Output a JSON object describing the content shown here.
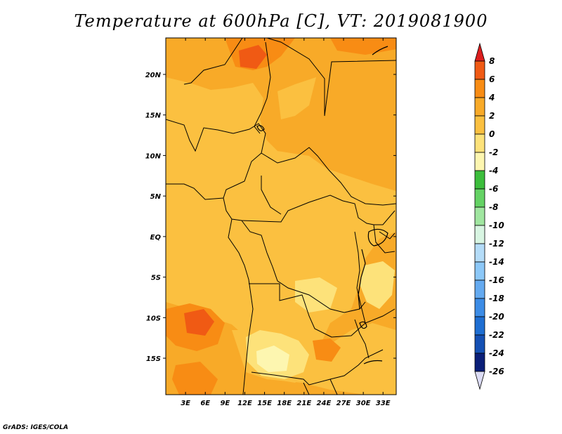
{
  "title": "Temperature at 600hPa [C], VT: 2019081900",
  "footer": "GrADS: IGES/COLA",
  "map": {
    "lon_labels": [
      "3E",
      "6E",
      "9E",
      "12E",
      "15E",
      "18E",
      "21E",
      "24E",
      "27E",
      "30E",
      "33E"
    ],
    "lat_labels": [
      "20N",
      "15N",
      "10N",
      "5N",
      "EQ",
      "5S",
      "10S",
      "15S"
    ],
    "lon_values": [
      3,
      6,
      9,
      12,
      15,
      18,
      21,
      24,
      27,
      30,
      33
    ],
    "lat_values": [
      20,
      15,
      10,
      5,
      0,
      -5,
      -10,
      -15
    ],
    "lon_range": [
      0,
      35
    ],
    "lat_range": [
      -19.5,
      24.5
    ]
  },
  "colorbar": {
    "labels": [
      "8",
      "6",
      "4",
      "2",
      "0",
      "-2",
      "-4",
      "-6",
      "-8",
      "-10",
      "-12",
      "-14",
      "-16",
      "-18",
      "-20",
      "-22",
      "-24",
      "-26"
    ],
    "colors": [
      "#dc1e1e",
      "#f05a14",
      "#f88c14",
      "#f8aa28",
      "#fbc040",
      "#fde27a",
      "#fdf6b0",
      "#3cbe3c",
      "#64d264",
      "#a0e6a0",
      "#d8f5e2",
      "#b4dcf8",
      "#8cc8f8",
      "#64aaf0",
      "#3c8ce6",
      "#1e6ed2",
      "#1450b4",
      "#0a1e78",
      "#dcdcf5"
    ],
    "top_cap_color": "#dc1e1e",
    "bottom_cap_color": "#dcdcf5"
  }
}
